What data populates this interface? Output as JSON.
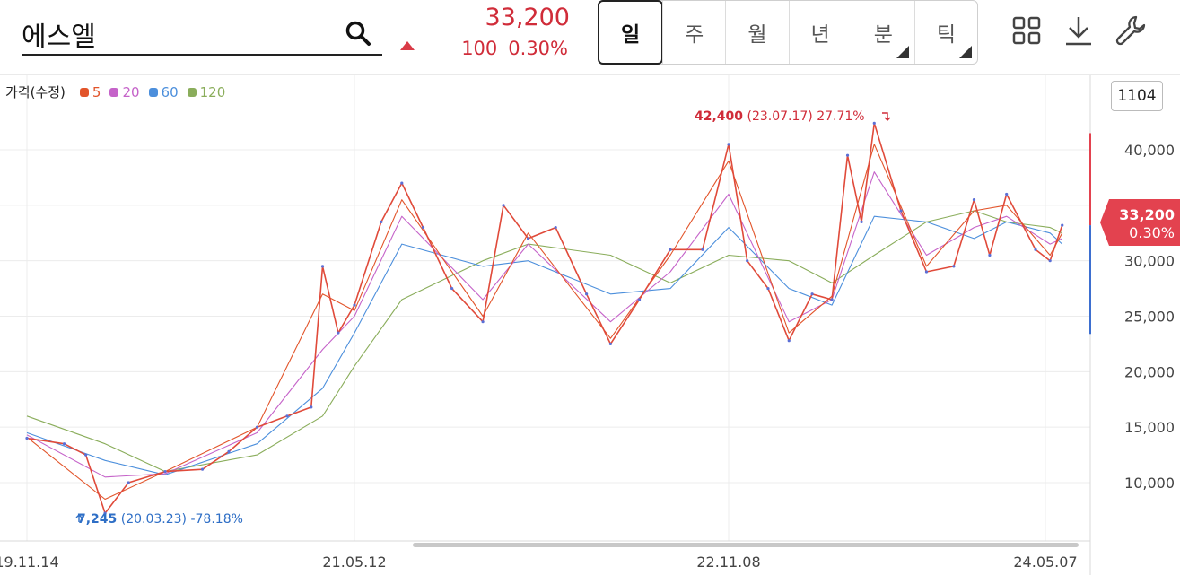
{
  "search": {
    "value": "에스엘"
  },
  "quote": {
    "price": "33,200",
    "change": "100",
    "change_pct": "0.30%",
    "color_up": "#d02c39"
  },
  "period_tabs": [
    {
      "label": "일",
      "active": true
    },
    {
      "label": "주"
    },
    {
      "label": "월"
    },
    {
      "label": "년"
    },
    {
      "label": "분",
      "corner": true
    },
    {
      "label": "틱",
      "corner": true
    }
  ],
  "tools": [
    "grid-layout-icon",
    "download-icon",
    "wrench-icon"
  ],
  "legend": {
    "label": "가격(수정)",
    "items": [
      {
        "label": "5",
        "color": "#e2542a"
      },
      {
        "label": "20",
        "color": "#c563c9"
      },
      {
        "label": "60",
        "color": "#4c8fdc"
      },
      {
        "label": "120",
        "color": "#8aad5b"
      }
    ]
  },
  "bar_count": "1104",
  "price_tag": {
    "value": "33,200",
    "pct": "0.30%"
  },
  "annotations": {
    "high": {
      "value": "42,400",
      "text": "(23.07.17) 27.71%"
    },
    "low": {
      "value": "7,245",
      "text": "(20.03.23) -78.18%"
    }
  },
  "chart_data": {
    "type": "line",
    "y_axis": {
      "ticks": [
        10000,
        15000,
        20000,
        25000,
        30000,
        35000,
        40000
      ],
      "tick_labels": [
        "10,000",
        "15,000",
        "20,000",
        "25,000",
        "30,000",
        "35,000",
        "40,000"
      ],
      "min": 5000,
      "max": 43000,
      "position": "right"
    },
    "x_axis": {
      "tick_labels": [
        "19.11.14",
        "21.05.12",
        "22.11.08",
        "24.05.07"
      ]
    },
    "grid": true,
    "series": [
      {
        "name": "price",
        "color": "#e04a3a",
        "points": [
          [
            "2019-11-14",
            14000
          ],
          [
            "2020-01-15",
            13500
          ],
          [
            "2020-02-20",
            12500
          ],
          [
            "2020-03-23",
            7245
          ],
          [
            "2020-05-01",
            10000
          ],
          [
            "2020-07-01",
            11000
          ],
          [
            "2020-09-01",
            11200
          ],
          [
            "2020-10-15",
            12800
          ],
          [
            "2020-12-01",
            15000
          ],
          [
            "2021-01-20",
            16000
          ],
          [
            "2021-03-01",
            16800
          ],
          [
            "2021-03-20",
            29500
          ],
          [
            "2021-04-15",
            23500
          ],
          [
            "2021-05-12",
            26000
          ],
          [
            "2021-06-20",
            33500
          ],
          [
            "2021-07-20",
            37000
          ],
          [
            "2021-08-20",
            33000
          ],
          [
            "2021-10-01",
            27500
          ],
          [
            "2021-11-15",
            24500
          ],
          [
            "2021-12-15",
            35000
          ],
          [
            "2022-01-20",
            32000
          ],
          [
            "2022-03-01",
            33000
          ],
          [
            "2022-04-15",
            27000
          ],
          [
            "2022-05-20",
            22500
          ],
          [
            "2022-07-01",
            26500
          ],
          [
            "2022-08-15",
            31000
          ],
          [
            "2022-10-01",
            31000
          ],
          [
            "2022-11-08",
            40500
          ],
          [
            "2022-12-10",
            30000
          ],
          [
            "2023-01-15",
            27500
          ],
          [
            "2023-02-20",
            22800
          ],
          [
            "2023-04-01",
            27000
          ],
          [
            "2023-05-05",
            26500
          ],
          [
            "2023-06-01",
            39500
          ],
          [
            "2023-06-25",
            33500
          ],
          [
            "2023-07-17",
            42400
          ],
          [
            "2023-09-01",
            34500
          ],
          [
            "2023-10-15",
            29000
          ],
          [
            "2023-12-01",
            29500
          ],
          [
            "2024-01-05",
            35500
          ],
          [
            "2024-02-01",
            30500
          ],
          [
            "2024-03-01",
            36000
          ],
          [
            "2024-04-20",
            31000
          ],
          [
            "2024-05-15",
            30000
          ],
          [
            "2024-06-05",
            33200
          ]
        ]
      },
      {
        "name": "5",
        "color": "#e2542a",
        "points": [
          [
            "2019-11-14",
            14100
          ],
          [
            "2020-03-23",
            8500
          ],
          [
            "2020-07-01",
            11000
          ],
          [
            "2020-12-01",
            15000
          ],
          [
            "2021-03-20",
            27000
          ],
          [
            "2021-05-12",
            25500
          ],
          [
            "2021-07-20",
            35500
          ],
          [
            "2021-11-15",
            25000
          ],
          [
            "2022-01-20",
            32500
          ],
          [
            "2022-05-20",
            23000
          ],
          [
            "2022-08-15",
            30500
          ],
          [
            "2022-11-08",
            39000
          ],
          [
            "2023-02-20",
            23500
          ],
          [
            "2023-05-05",
            26800
          ],
          [
            "2023-07-17",
            40500
          ],
          [
            "2023-10-15",
            29500
          ],
          [
            "2024-01-05",
            34500
          ],
          [
            "2024-03-01",
            35000
          ],
          [
            "2024-05-15",
            30500
          ],
          [
            "2024-06-05",
            32500
          ]
        ]
      },
      {
        "name": "20",
        "color": "#c563c9",
        "points": [
          [
            "2019-11-14",
            14300
          ],
          [
            "2020-03-23",
            10500
          ],
          [
            "2020-07-01",
            10800
          ],
          [
            "2020-12-01",
            14500
          ],
          [
            "2021-03-20",
            22000
          ],
          [
            "2021-05-12",
            25000
          ],
          [
            "2021-07-20",
            34000
          ],
          [
            "2021-11-15",
            26500
          ],
          [
            "2022-01-20",
            31500
          ],
          [
            "2022-05-20",
            24500
          ],
          [
            "2022-08-15",
            29000
          ],
          [
            "2022-11-08",
            36000
          ],
          [
            "2023-02-20",
            24500
          ],
          [
            "2023-05-05",
            26500
          ],
          [
            "2023-07-17",
            38000
          ],
          [
            "2023-10-15",
            30500
          ],
          [
            "2024-01-05",
            33000
          ],
          [
            "2024-03-01",
            34000
          ],
          [
            "2024-05-15",
            31500
          ],
          [
            "2024-06-05",
            32000
          ]
        ]
      },
      {
        "name": "60",
        "color": "#4c8fdc",
        "points": [
          [
            "2019-11-14",
            14500
          ],
          [
            "2020-03-23",
            12000
          ],
          [
            "2020-07-01",
            10700
          ],
          [
            "2020-12-01",
            13500
          ],
          [
            "2021-03-20",
            18500
          ],
          [
            "2021-05-12",
            23500
          ],
          [
            "2021-07-20",
            31500
          ],
          [
            "2021-11-15",
            29500
          ],
          [
            "2022-01-20",
            30000
          ],
          [
            "2022-05-20",
            27000
          ],
          [
            "2022-08-15",
            27500
          ],
          [
            "2022-11-08",
            33000
          ],
          [
            "2023-02-20",
            27500
          ],
          [
            "2023-05-05",
            26000
          ],
          [
            "2023-07-17",
            34000
          ],
          [
            "2023-10-15",
            33500
          ],
          [
            "2024-01-05",
            32000
          ],
          [
            "2024-03-01",
            33500
          ],
          [
            "2024-05-15",
            32500
          ],
          [
            "2024-06-05",
            31500
          ]
        ]
      },
      {
        "name": "120",
        "color": "#8aad5b",
        "points": [
          [
            "2019-11-14",
            16000
          ],
          [
            "2020-03-23",
            13500
          ],
          [
            "2020-07-01",
            11000
          ],
          [
            "2020-12-01",
            12500
          ],
          [
            "2021-03-20",
            16000
          ],
          [
            "2021-05-12",
            20500
          ],
          [
            "2021-07-20",
            26500
          ],
          [
            "2021-11-15",
            30000
          ],
          [
            "2022-01-20",
            31500
          ],
          [
            "2022-05-20",
            30500
          ],
          [
            "2022-08-15",
            28000
          ],
          [
            "2022-11-08",
            30500
          ],
          [
            "2023-02-20",
            30000
          ],
          [
            "2023-05-05",
            28000
          ],
          [
            "2023-07-17",
            30500
          ],
          [
            "2023-10-15",
            33500
          ],
          [
            "2024-01-05",
            34500
          ],
          [
            "2024-03-01",
            33500
          ],
          [
            "2024-05-15",
            33000
          ],
          [
            "2024-06-05",
            32500
          ]
        ]
      }
    ]
  }
}
